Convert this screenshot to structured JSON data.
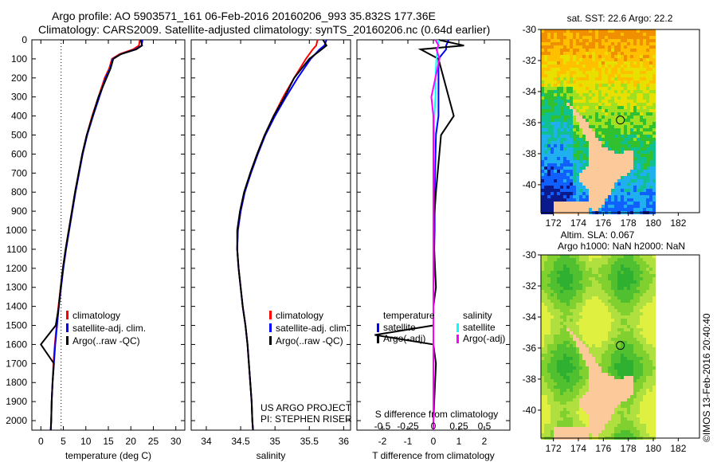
{
  "title": {
    "line1": "Argo profile: AO 5903571_161 06-Feb-2016 20160206_993 35.832S 177.36E",
    "line2": "Climatology: CARS2009. Satellite-adjusted climatology: synTS_20160206.nc (0.64d earlier)"
  },
  "colors": {
    "climatology": "#ff0000",
    "satellite": "#0000ff",
    "argo": "#000000",
    "sal_satellite": "#00ffff",
    "sal_argo": "#ff00ff",
    "land": "#fcc99b"
  },
  "chart_data": [
    {
      "type": "line",
      "name": "temperature",
      "xlabel": "temperature (deg C)",
      "ylabel": "",
      "xlim": [
        -2,
        32
      ],
      "ylim": [
        2050,
        0
      ],
      "xticks": [
        0,
        5,
        10,
        15,
        20,
        25,
        30
      ],
      "yticks": [
        0,
        100,
        200,
        300,
        400,
        500,
        600,
        700,
        800,
        900,
        1000,
        1100,
        1200,
        1300,
        1400,
        1500,
        1600,
        1700,
        1800,
        1900,
        2000
      ],
      "legend": [
        "climatology",
        "satellite-adj. clim.",
        "Argo(..raw -QC)"
      ],
      "depth": [
        0,
        30,
        50,
        75,
        100,
        150,
        200,
        300,
        400,
        500,
        600,
        700,
        800,
        900,
        1000,
        1100,
        1200,
        1300,
        1400,
        1500,
        1600,
        1700,
        1800,
        1900,
        2000,
        2050
      ],
      "series": [
        {
          "name": "climatology",
          "values": [
            22.0,
            21.8,
            20.5,
            17.5,
            15.8,
            15.2,
            14.2,
            12.8,
            11.4,
            10.2,
            9.2,
            8.4,
            7.6,
            6.9,
            6.2,
            5.5,
            4.9,
            4.4,
            3.9,
            3.5,
            3.1,
            2.8,
            2.6,
            2.4,
            2.3,
            2.2
          ]
        },
        {
          "name": "satellite-adj. clim.",
          "values": [
            22.6,
            22.4,
            21.0,
            17.8,
            16.0,
            15.4,
            14.4,
            13.0,
            11.6,
            10.3,
            9.3,
            8.5,
            7.7,
            7.0,
            6.3,
            5.6,
            5.0,
            4.5,
            4.0,
            3.6,
            3.2,
            2.9,
            2.6,
            2.4,
            2.3,
            2.2
          ]
        },
        {
          "name": "Argo(..raw -QC)",
          "values": [
            22.2,
            22.5,
            21.2,
            17.8,
            16.1,
            15.5,
            14.6,
            12.8,
            11.5,
            10.2,
            9.2,
            8.4,
            7.6,
            6.9,
            6.2,
            5.5,
            4.9,
            4.4,
            4.0,
            3.3,
            0.0,
            2.9,
            2.6,
            2.4,
            2.3,
            2.2
          ]
        }
      ],
      "reference_line": 4.5
    },
    {
      "type": "line",
      "name": "salinity",
      "xlabel": "salinity",
      "xlim": [
        33.78,
        36.1
      ],
      "ylim": [
        2050,
        0
      ],
      "xticks": [
        34,
        34.5,
        35,
        35.5,
        36
      ],
      "legend": [
        "climatology",
        "satellite-adj. clim.",
        "Argo(..raw -QC)"
      ],
      "annotation": [
        "US ARGO PROJECT",
        "PI: STEPHEN RISER"
      ],
      "depth": [
        0,
        30,
        50,
        100,
        200,
        300,
        400,
        500,
        600,
        700,
        800,
        900,
        1000,
        1100,
        1200,
        1300,
        1400,
        1500,
        1600,
        1700,
        1800,
        1900,
        2000,
        2050
      ],
      "series": [
        {
          "name": "climatology",
          "values": [
            35.62,
            35.6,
            35.55,
            35.45,
            35.28,
            35.12,
            34.98,
            34.85,
            34.74,
            34.64,
            34.56,
            34.5,
            34.46,
            34.45,
            34.47,
            34.5,
            34.53,
            34.57,
            34.6,
            34.62,
            34.64,
            34.66,
            34.67,
            34.68
          ]
        },
        {
          "name": "satellite-adj. clim.",
          "values": [
            35.75,
            35.72,
            35.65,
            35.52,
            35.33,
            35.16,
            35.0,
            34.86,
            34.75,
            34.65,
            34.56,
            34.5,
            34.46,
            34.45,
            34.47,
            34.5,
            34.53,
            34.57,
            34.6,
            34.62,
            34.64,
            34.66,
            34.67,
            34.68
          ]
        },
        {
          "name": "Argo(..raw -QC)",
          "values": [
            35.7,
            35.75,
            35.68,
            35.5,
            35.28,
            35.14,
            34.98,
            34.85,
            34.74,
            34.64,
            34.55,
            34.49,
            34.45,
            34.45,
            34.47,
            34.5,
            34.53,
            34.57,
            34.6,
            34.62,
            34.64,
            34.66,
            34.67,
            34.68
          ]
        }
      ]
    },
    {
      "type": "line",
      "name": "differences",
      "xlabel": "T difference from climatology",
      "xlabel2": "S difference from climatology",
      "xlim": [
        -3,
        3
      ],
      "xticks": [
        -2,
        -1,
        0,
        1,
        2
      ],
      "xticks2": [
        "-0.5",
        "-0.25",
        "0",
        "0.25",
        "0.5"
      ],
      "ylim": [
        2050,
        0
      ],
      "legend_titles": [
        "temperature",
        "salinity"
      ],
      "legend": [
        "satellite",
        "Argo(-adj)",
        "satellite",
        "Argo(-adj)"
      ],
      "depth": [
        0,
        30,
        50,
        100,
        200,
        300,
        400,
        500,
        800,
        1000,
        1300,
        1400,
        1500,
        1550,
        1600,
        1700,
        2000,
        2050
      ],
      "series": [
        {
          "name": "T satellite",
          "values": [
            0.6,
            0.5,
            0.5,
            0.2,
            0.2,
            0.2,
            0.2,
            0.1,
            0.05,
            0.05,
            0,
            0,
            0,
            0,
            0,
            0,
            0,
            0
          ]
        },
        {
          "name": "T Argo(-adj)",
          "values": [
            0.2,
            1.2,
            -0.5,
            0.2,
            0.4,
            0.6,
            0.8,
            0.3,
            0.1,
            0,
            0.1,
            0,
            0,
            -2.3,
            0,
            0.1,
            0,
            0
          ]
        },
        {
          "name": "S satellite",
          "values": [
            0.05,
            0.05,
            0.04,
            0.03,
            0.02,
            0.02,
            0.01,
            0.01,
            0,
            0,
            0,
            0,
            0,
            0,
            0,
            0,
            0,
            0
          ]
        },
        {
          "name": "S Argo(-adj)",
          "values": [
            0.02,
            0.05,
            0.03,
            0.06,
            0.02,
            -0.02,
            0,
            0,
            0,
            0,
            0,
            0,
            0,
            0,
            0,
            0,
            0,
            0
          ]
        }
      ]
    }
  ],
  "maps": [
    {
      "title": "sat. SST: 22.6 Argo: 22.2",
      "lat_ticks": [
        "-30",
        "-32",
        "-34",
        "-36",
        "-38",
        "-40"
      ],
      "lon_ticks": [
        "172",
        "174",
        "176",
        "178",
        "180",
        "182"
      ]
    },
    {
      "title1": "Altim. SLA: 0.067",
      "title2": "Argo h1000: NaN h2000: NaN",
      "lat_ticks": [
        "-30",
        "-32",
        "-34",
        "-36",
        "-38",
        "-40"
      ],
      "lon_ticks": [
        "172",
        "174",
        "176",
        "178",
        "180",
        "182"
      ]
    }
  ],
  "footer": "©IMOS 13-Feb-2016 20:40:40"
}
